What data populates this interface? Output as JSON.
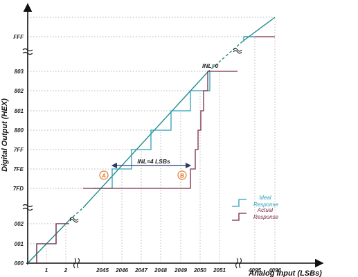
{
  "axes": {
    "x_label": "Analog Input (LSBs)",
    "y_label": "Digital Output (HEX)",
    "x_ticks": [
      "1",
      "2",
      "2045",
      "2046",
      "2047",
      "2048",
      "2049",
      "2050",
      "2051",
      "4095",
      "4096"
    ],
    "y_ticks": [
      "000",
      "001",
      "002",
      "7FD",
      "7FE",
      "7FF",
      "800",
      "801",
      "802",
      "803",
      "FFF"
    ]
  },
  "annotations": {
    "inl_zero": "INL=0",
    "inl_four": "INL=4 LSBs",
    "marker_a": "A",
    "marker_b": "B"
  },
  "legend": {
    "ideal": "Ideal Response",
    "actual": "Actual Response"
  },
  "colors": {
    "ideal": "#2aa0b8",
    "actual": "#7a2a45",
    "diagonal": "#1f8a8a",
    "marker": "#e07a2a",
    "arrow": "#2a3a6a"
  }
}
